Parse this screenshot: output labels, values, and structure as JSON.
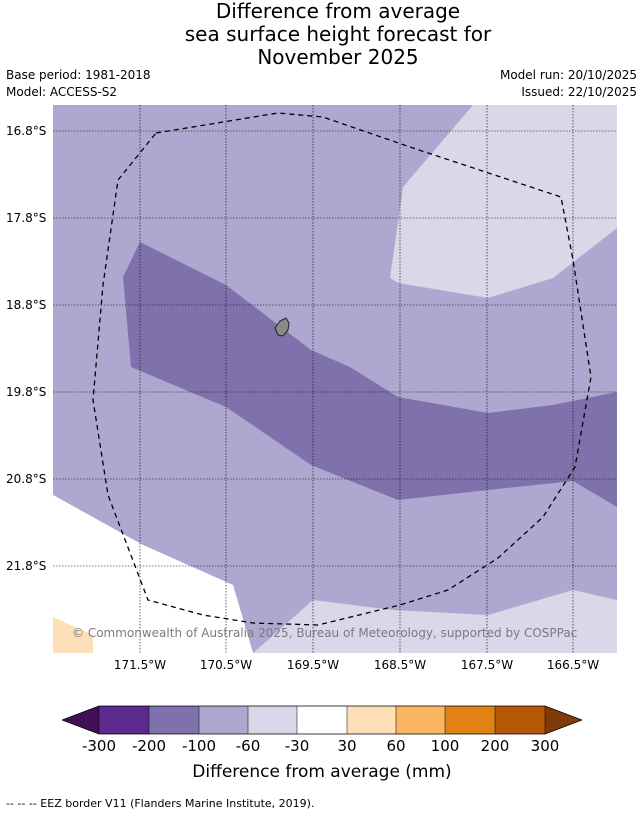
{
  "title": {
    "line1": "Difference from average",
    "line2": "sea surface height forecast for",
    "line3": "November 2025"
  },
  "info": {
    "base_period": "Base period: 1981-2018",
    "model": "Model: ACCESS-S2",
    "model_run": "Model run: 20/10/2025",
    "issued": "Issued: 22/10/2025"
  },
  "map": {
    "latitude_labels": [
      "16.8°S",
      "17.8°S",
      "18.8°S",
      "19.8°S",
      "20.8°S",
      "21.8°S"
    ],
    "longitude_labels": [
      "171.5°W",
      "170.5°W",
      "169.5°W",
      "168.5°W",
      "167.5°W",
      "166.5°W"
    ],
    "copyright": "© Commonwealth of Australia 2025, Bureau of Meteorology, supported by COSPPac",
    "land_color": "#8a8a8a",
    "gridlines": true
  },
  "colorbar": {
    "labels": [
      "-300",
      "-200",
      "-100",
      "-60",
      "-30",
      "30",
      "60",
      "100",
      "200",
      "300"
    ],
    "colors": [
      "#3f0f57",
      "#5b2a8c",
      "#7f72ac",
      "#aea7cf",
      "#d8d8e8",
      "#ffffff",
      "#fde0b8",
      "#fbb661",
      "#e08214",
      "#b45706",
      "#7f3b08"
    ],
    "title": "Difference from average (mm)"
  },
  "footnote": "--  --  -- EEZ border V11 (Flanders Marine Institute, 2019)."
}
